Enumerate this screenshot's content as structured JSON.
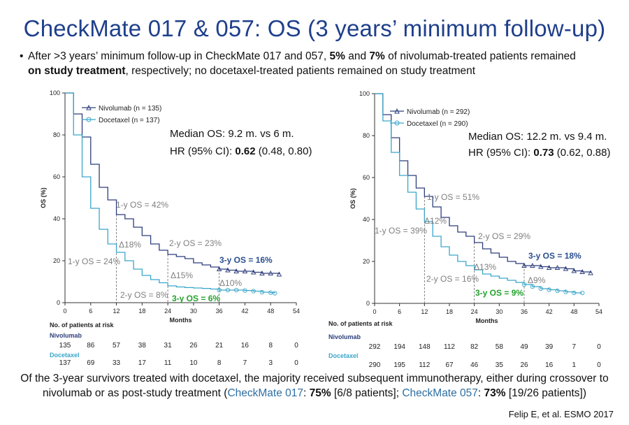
{
  "title": "CheckMate 017 & 057: OS (3 years’ minimum follow-up)",
  "bullet": {
    "t1": "After >3 years’ minimum follow-up in CheckMate 017 and 057, ",
    "b1": "5%",
    "t2": " and ",
    "b2": "7%",
    "t3": " of nivolumab-treated patients remained",
    "b3": "on study treatment",
    "t4": ", respectively; no docetaxel-treated patients remained on study treatment"
  },
  "footer": {
    "t1": "Of the 3-year survivors treated with docetaxel, the majority received subsequent immunotherapy, either during crossover to nivolumab or as post-study treatment (",
    "cm1": "CheckMate 017",
    "t2": ": ",
    "b1": "75%",
    "t3": " [6/8 patients]; ",
    "cm2": "CheckMate 057",
    "t4": ": ",
    "b2": "73%",
    "t5": " [19/26 patients])"
  },
  "citation": "Felip E, et al. ESMO 2017",
  "colors": {
    "nivolumab": "#2e3f7c",
    "docetaxel": "#3aa6c9",
    "title": "#1f3f8c",
    "green": "#22a22a"
  },
  "chart_data": [
    {
      "type": "line",
      "xlabel": "Months",
      "ylabel": "OS (%)",
      "xlim": [
        0,
        54
      ],
      "ylim": [
        0,
        100
      ],
      "xticks": [
        0,
        6,
        12,
        18,
        24,
        30,
        36,
        42,
        48,
        54
      ],
      "yticks": [
        0,
        20,
        40,
        60,
        80,
        100
      ],
      "median_text": "Median OS: 9.2 m. vs 6 m.",
      "hr_prefix": "HR (95% CI): ",
      "hr_value": "0.62",
      "hr_ci": " (0.48, 0.80)",
      "series": [
        {
          "name": "Nivolumab (n = 135)",
          "x": [
            0,
            2,
            4,
            6,
            8,
            10,
            12,
            14,
            16,
            18,
            20,
            22,
            24,
            26,
            28,
            30,
            32,
            34,
            36,
            38,
            40,
            42,
            44,
            46,
            48,
            50
          ],
          "y": [
            100,
            90,
            79,
            66,
            55,
            49,
            42,
            40,
            36,
            32,
            28,
            25,
            23,
            22,
            21,
            19,
            18,
            17,
            16,
            15.5,
            15,
            15,
            14.5,
            14,
            14,
            13.5
          ]
        },
        {
          "name": "Docetaxel (n = 137)",
          "x": [
            0,
            2,
            4,
            6,
            8,
            10,
            12,
            14,
            16,
            18,
            20,
            22,
            24,
            26,
            28,
            30,
            32,
            34,
            36,
            38,
            40,
            42,
            44,
            46,
            48,
            49
          ],
          "y": [
            100,
            80,
            60,
            45,
            35,
            28,
            24,
            20,
            16,
            13,
            11,
            9.5,
            8,
            7.5,
            7.2,
            7,
            6.8,
            6.5,
            6,
            6,
            6,
            5.8,
            5.5,
            5,
            4.8,
            4.5
          ]
        }
      ],
      "annotations": {
        "niv_1y": "1-y OS = 42%",
        "doc_1y": "1-y OS = 24%",
        "d1": "Δ18%",
        "niv_2y": "2-y OS = 23%",
        "doc_2y": "2-y OS = 8%",
        "d2": "Δ15%",
        "niv_3y": "3-y OS = 16%",
        "doc_3y": "3-y OS = 6%",
        "d3": "Δ10%"
      },
      "risk": {
        "header": "No. of patients at risk",
        "nivolumab_label": "Nivolumab",
        "docetaxel_label": "Docetaxel",
        "nivolumab": [
          "135",
          "86",
          "57",
          "38",
          "31",
          "26",
          "21",
          "16",
          "8",
          "0"
        ],
        "docetaxel": [
          "137",
          "69",
          "33",
          "17",
          "11",
          "10",
          "8",
          "7",
          "3",
          "0"
        ]
      }
    },
    {
      "type": "line",
      "xlabel": "Months",
      "ylabel": "OS (%)",
      "xlim": [
        0,
        54
      ],
      "ylim": [
        0,
        100
      ],
      "xticks": [
        0,
        6,
        12,
        18,
        24,
        30,
        36,
        42,
        48,
        54
      ],
      "yticks": [
        0,
        20,
        40,
        60,
        80,
        100
      ],
      "median_text": "Median OS: 12.2 m. vs 9.4 m.",
      "hr_prefix": "HR (95% CI): ",
      "hr_value": "0.73",
      "hr_ci": " (0.62, 0.88)",
      "series": [
        {
          "name": "Nivolumab (n = 292)",
          "x": [
            0,
            2,
            4,
            6,
            8,
            10,
            12,
            14,
            16,
            18,
            20,
            22,
            24,
            26,
            28,
            30,
            32,
            34,
            36,
            38,
            40,
            42,
            44,
            46,
            48,
            50,
            52
          ],
          "y": [
            100,
            90,
            79,
            68,
            61,
            55,
            51,
            46,
            41,
            37,
            34,
            32,
            29,
            26,
            24,
            22,
            20,
            19,
            18,
            18,
            17.5,
            17,
            17,
            16.5,
            15.5,
            15,
            14.5
          ]
        },
        {
          "name": "Docetaxel (n = 290)",
          "x": [
            0,
            2,
            4,
            6,
            8,
            10,
            12,
            14,
            16,
            18,
            20,
            22,
            24,
            26,
            28,
            30,
            32,
            34,
            36,
            38,
            40,
            42,
            44,
            46,
            48,
            50
          ],
          "y": [
            100,
            87,
            72,
            61,
            53,
            45,
            39,
            32,
            27,
            23,
            20,
            18,
            16,
            14,
            13,
            12,
            11,
            10,
            9,
            8,
            7,
            6.5,
            6,
            5.5,
            5,
            5
          ]
        }
      ],
      "annotations": {
        "niv_1y": "1-y OS = 51%",
        "doc_1y": "1-y OS = 39%",
        "d1": "Δ12%",
        "niv_2y": "2-y OS = 29%",
        "doc_2y": "2-y OS = 16%",
        "d2": "Δ13%",
        "niv_3y": "3-y OS = 18%",
        "doc_3y": "3-y OS = 9%",
        "d3": "Δ9%"
      },
      "risk": {
        "header": "No. of patients at risk",
        "nivolumab_label": "Nivolumab",
        "docetaxel_label": "Docetaxel",
        "nivolumab": [
          "292",
          "194",
          "148",
          "112",
          "82",
          "58",
          "49",
          "39",
          "7",
          "0"
        ],
        "docetaxel": [
          "290",
          "195",
          "112",
          "67",
          "46",
          "35",
          "26",
          "16",
          "1",
          "0"
        ]
      }
    }
  ]
}
